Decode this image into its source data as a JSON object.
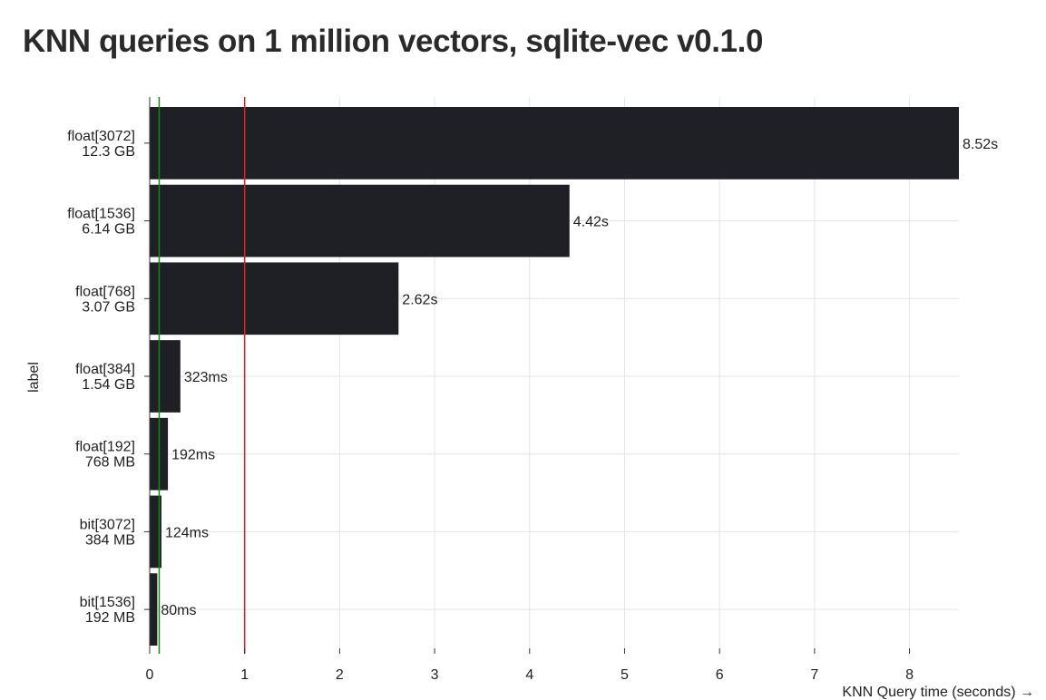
{
  "chart_data": {
    "type": "bar",
    "orientation": "horizontal",
    "title": "KNN queries on 1 million vectors, sqlite-vec v0.1.0",
    "ylabel": "label",
    "xlabel": "KNN Query time (seconds) →",
    "xlim": [
      0,
      8.52
    ],
    "xticks": [
      "0",
      "1",
      "2",
      "3",
      "4",
      "5",
      "6",
      "7",
      "8"
    ],
    "grid": true,
    "bar_color": "#1e2025",
    "categories": [
      [
        "float[3072]",
        "12.3 GB"
      ],
      [
        "float[1536]",
        "6.14 GB"
      ],
      [
        "float[768]",
        "3.07 GB"
      ],
      [
        "float[384]",
        "1.54 GB"
      ],
      [
        "float[192]",
        "768 MB"
      ],
      [
        "bit[3072]",
        "384 MB"
      ],
      [
        "bit[1536]",
        "192 MB"
      ]
    ],
    "values": [
      8.52,
      4.42,
      2.62,
      0.323,
      0.192,
      0.124,
      0.08
    ],
    "value_labels": [
      "8.52s",
      "4.42s",
      "2.62s",
      "323ms",
      "192ms",
      "124ms",
      "80ms"
    ],
    "reference_lines": [
      {
        "x": 0.1,
        "color": "#118811"
      },
      {
        "x": 1,
        "color": "#dd2222"
      }
    ]
  }
}
